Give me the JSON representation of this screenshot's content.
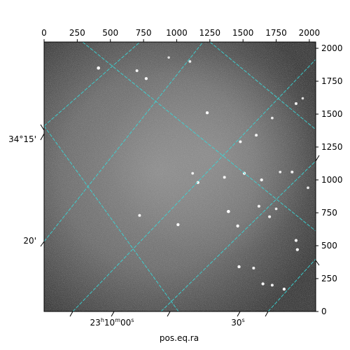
{
  "chart_data": {
    "type": "scatter",
    "xlabel": "pos.eq.ra",
    "ylabel": "",
    "top_axis": {
      "xlim": [
        0,
        2048
      ],
      "ticks": [
        0,
        250,
        500,
        750,
        1000,
        1250,
        1500,
        1750,
        2000
      ]
    },
    "right_axis": {
      "ylim": [
        0,
        2048
      ],
      "ticks": [
        0,
        250,
        500,
        750,
        1000,
        1250,
        1500,
        1750,
        2000
      ]
    },
    "ra_tick_labels": [
      "23h10m00s",
      "30s"
    ],
    "dec_tick_labels": [
      "34°15'",
      "20'"
    ],
    "grid_color": "#3ad6d6",
    "background": "grayscale astronomical image",
    "stars": {
      "x": [
        410,
        700,
        770,
        940,
        1100,
        1230,
        1480,
        1600,
        1720,
        1900,
        1950,
        1120,
        1360,
        1640,
        1780,
        1870,
        1990,
        720,
        1160,
        1510,
        1620,
        1750,
        1900,
        1010,
        1390,
        1460,
        1700,
        1910,
        1470,
        1580,
        1810,
        1650,
        1720
      ],
      "y": [
        1850,
        1830,
        1770,
        1930,
        1900,
        1510,
        1290,
        1340,
        1470,
        1580,
        1620,
        1050,
        1020,
        1000,
        1060,
        1060,
        940,
        730,
        980,
        1050,
        800,
        780,
        540,
        660,
        760,
        650,
        720,
        470,
        340,
        330,
        170,
        210,
        200
      ],
      "brightness": [
        1,
        0.8,
        0.9,
        0.6,
        0.7,
        0.9,
        0.8,
        0.8,
        0.7,
        0.8,
        0.6,
        0.7,
        0.8,
        0.9,
        0.7,
        0.8,
        0.7,
        0.8,
        0.9,
        0.9,
        0.8,
        0.7,
        0.9,
        0.9,
        1,
        0.9,
        0.8,
        0.9,
        0.9,
        0.8,
        0.9,
        0.9,
        0.8
      ]
    }
  }
}
